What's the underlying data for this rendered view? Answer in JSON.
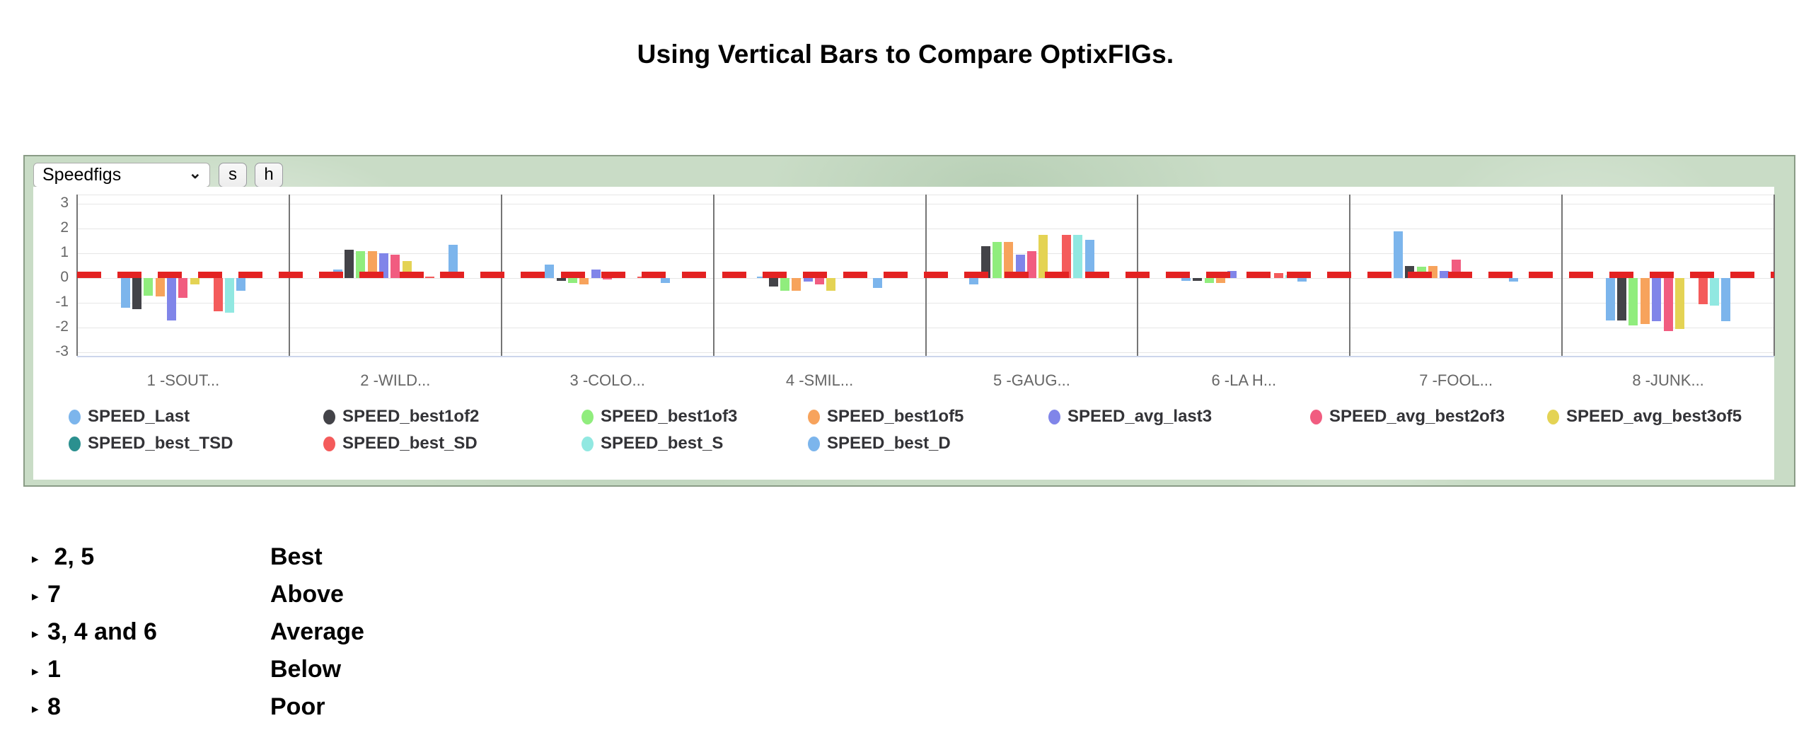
{
  "page_title": "Using Vertical Bars to Compare OptixFIGs.",
  "controls": {
    "figtype_select_value": "Speedfigs",
    "button_s_label": "s",
    "button_h_label": "h"
  },
  "chart_data": {
    "type": "bar",
    "title": "",
    "categories": [
      "1 -SOUT...",
      "2 -WILD...",
      "3 -COLO...",
      "4 -SMIL...",
      "5 -GAUG...",
      "6 -LA H...",
      "7 -FOOL...",
      "8 -JUNK..."
    ],
    "yticks": [
      3,
      2,
      1,
      0,
      -1,
      -2,
      -3
    ],
    "ylim": [
      -3.15,
      3.35
    ],
    "grid": true,
    "legend_position": "bottom",
    "zero_plotline": {
      "value": 0.12,
      "color": "#e32222",
      "style": "dashed"
    },
    "series": [
      {
        "name": "SPEED_Last",
        "color": "#7cb5ec",
        "values": [
          -1.2,
          0.35,
          0.55,
          0.05,
          -0.25,
          -0.1,
          1.9,
          -1.7
        ]
      },
      {
        "name": "SPEED_best1of2",
        "color": "#434348",
        "values": [
          -1.25,
          1.15,
          -0.1,
          -0.35,
          1.3,
          -0.1,
          0.5,
          -1.7
        ]
      },
      {
        "name": "SPEED_best1of3",
        "color": "#90ed7d",
        "values": [
          -0.7,
          1.1,
          -0.2,
          -0.5,
          1.45,
          -0.2,
          0.45,
          -1.9
        ]
      },
      {
        "name": "SPEED_best1of5",
        "color": "#f7a35c",
        "values": [
          -0.75,
          1.1,
          -0.25,
          -0.5,
          1.45,
          -0.2,
          0.5,
          -1.85
        ]
      },
      {
        "name": "SPEED_avg_last3",
        "color": "#8085e9",
        "values": [
          -1.7,
          1.0,
          0.35,
          -0.15,
          0.95,
          0.3,
          0.3,
          -1.75
        ]
      },
      {
        "name": "SPEED_avg_best2of3",
        "color": "#f15c80",
        "values": [
          -0.8,
          0.95,
          -0.05,
          -0.25,
          1.1,
          null,
          0.75,
          -2.15
        ]
      },
      {
        "name": "SPEED_avg_best3of5",
        "color": "#e4d354",
        "values": [
          -0.25,
          0.7,
          null,
          -0.5,
          1.75,
          null,
          0.08,
          -2.05
        ]
      },
      {
        "name": "SPEED_best_TSD",
        "color": "#2b908f",
        "values": [
          null,
          null,
          null,
          null,
          null,
          null,
          null,
          null
        ]
      },
      {
        "name": "SPEED_best_SD",
        "color": "#f45b5b",
        "values": [
          -1.35,
          0.07,
          0.05,
          null,
          1.75,
          0.2,
          null,
          -1.05
        ]
      },
      {
        "name": "SPEED_best_S",
        "color": "#91e8e1",
        "values": [
          -1.4,
          null,
          0.05,
          null,
          1.75,
          0.12,
          null,
          -1.1
        ]
      },
      {
        "name": "SPEED_best_D",
        "color": "#7cb5ec",
        "values": [
          -0.5,
          1.35,
          -0.2,
          -0.4,
          1.55,
          -0.15,
          -0.15,
          -1.75
        ]
      }
    ]
  },
  "ratings": {
    "bullet": "▸",
    "rows": [
      {
        "groups": " 2, 5",
        "label": "Best"
      },
      {
        "groups": "7",
        "label": "Above"
      },
      {
        "groups": "3, 4 and 6",
        "label": "Average"
      },
      {
        "groups": "1",
        "label": "Below"
      },
      {
        "groups": "8",
        "label": "Poor"
      }
    ]
  }
}
